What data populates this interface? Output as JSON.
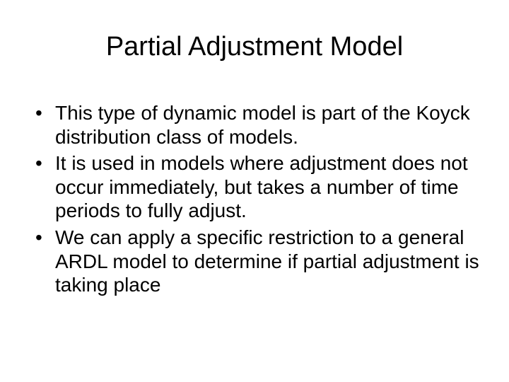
{
  "slide": {
    "title": "Partial Adjustment Model",
    "bullets": [
      "This type of dynamic model is part of the Koyck distribution class of models.",
      "It is used in models where adjustment does not occur immediately, but takes a number of time periods to fully adjust.",
      "We can apply a specific restriction to a general ARDL model to determine if partial adjustment is taking place"
    ],
    "title_fontsize": 38,
    "body_fontsize": 28,
    "text_color": "#000000",
    "background_color": "#ffffff"
  }
}
